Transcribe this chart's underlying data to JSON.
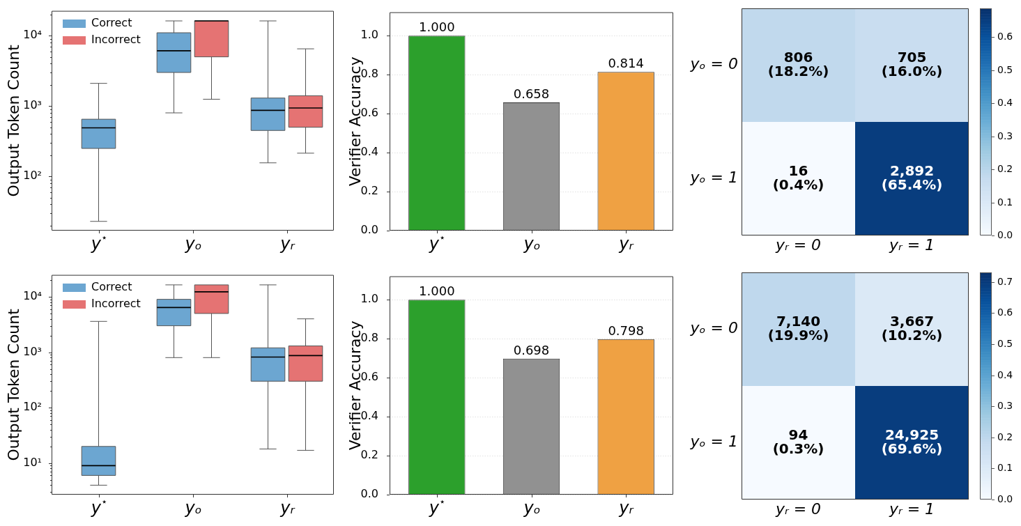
{
  "chart_data": [
    {
      "type": "box",
      "ylabel": "Output Token Count",
      "categories": [
        "y$^{⋆}$",
        "yₒ",
        "yᵣ"
      ],
      "log": "y",
      "ylim": [
        17,
        22500
      ],
      "yticks": [
        {
          "value": 20,
          "label": null
        },
        {
          "value": 30,
          "label": null
        },
        {
          "value": 40,
          "label": null
        },
        {
          "value": 50,
          "label": null
        },
        {
          "value": 60,
          "label": null
        },
        {
          "value": 70,
          "label": null
        },
        {
          "value": 80,
          "label": null
        },
        {
          "value": 90,
          "label": null
        },
        {
          "value": 100,
          "label": "10²"
        },
        {
          "value": 200,
          "label": null
        },
        {
          "value": 300,
          "label": null
        },
        {
          "value": 400,
          "label": null
        },
        {
          "value": 500,
          "label": null
        },
        {
          "value": 600,
          "label": null
        },
        {
          "value": 700,
          "label": null
        },
        {
          "value": 800,
          "label": null
        },
        {
          "value": 900,
          "label": null
        },
        {
          "value": 1000,
          "label": "10³"
        },
        {
          "value": 2000,
          "label": null
        },
        {
          "value": 3000,
          "label": null
        },
        {
          "value": 4000,
          "label": null
        },
        {
          "value": 5000,
          "label": null
        },
        {
          "value": 6000,
          "label": null
        },
        {
          "value": 7000,
          "label": null
        },
        {
          "value": 8000,
          "label": null
        },
        {
          "value": 9000,
          "label": null
        },
        {
          "value": 10000,
          "label": "10⁴"
        },
        {
          "value": 20000,
          "label": null
        }
      ],
      "legend": "top left",
      "series": [
        {
          "name": "Correct",
          "color": "#6ca6d1",
          "boxes": [
            {
              "low": 23,
              "q1": 250,
              "median": 490,
              "q3": 650,
              "high": 2100
            },
            {
              "low": 800,
              "q1": 3000,
              "median": 6100,
              "q3": 11000,
              "high": 16200
            },
            {
              "low": 156,
              "q1": 450,
              "median": 870,
              "q3": 1300,
              "high": 16200
            }
          ]
        },
        {
          "name": "Incorrect",
          "color": "#e57373",
          "boxes": [
            null,
            {
              "low": 1250,
              "q1": 5000,
              "median": 16200,
              "q3": 16200,
              "high": 16200
            },
            {
              "low": 214,
              "q1": 500,
              "median": 940,
              "q3": 1400,
              "high": 6500
            }
          ]
        }
      ]
    },
    {
      "type": "bar",
      "ylabel": "Verifier Accuracy",
      "categories": [
        "y$^{⋆}$",
        "yₒ",
        "yᵣ"
      ],
      "values": [
        1.0,
        0.658,
        0.814
      ],
      "colors": [
        "#2ca02c",
        "#919191",
        "#efa143"
      ],
      "value_labels": [
        "1.000",
        "0.658",
        "0.814"
      ],
      "ylim": [
        0,
        1.12
      ],
      "yticks": [
        {
          "value": 0,
          "label": "0.0"
        },
        0.2,
        0.4,
        0.6,
        0.8,
        {
          "value": 1,
          "label": "1.0"
        }
      ],
      "grid": "y"
    },
    {
      "type": "heatmap",
      "categories": [
        "yᵣ = 0",
        "yᵣ = 1"
      ],
      "y_categories": [
        "yₒ = 0",
        "yₒ = 1"
      ],
      "cells": [
        [
          0.182,
          0.16
        ],
        [
          0.004,
          0.654
        ]
      ],
      "cell_labels": [
        [
          "806\n(18.2%)",
          "705\n(16.0%)"
        ],
        [
          "16\n(0.4%)",
          "2,892\n(65.4%)"
        ]
      ],
      "clim": [
        0,
        0.687
      ],
      "cticks": [
        {
          "value": 0,
          "label": "0.0"
        },
        0.1,
        0.2,
        0.3,
        0.4,
        0.5,
        0.6
      ]
    },
    {
      "type": "box",
      "ylabel": "Output Token Count",
      "categories": [
        "y$^{⋆}$",
        "yₒ",
        "yᵣ"
      ],
      "log": "y",
      "ylim": [
        2.7,
        24800
      ],
      "yticks": [
        {
          "value": 3,
          "label": null
        },
        {
          "value": 4,
          "label": null
        },
        {
          "value": 5,
          "label": null
        },
        {
          "value": 6,
          "label": null
        },
        {
          "value": 7,
          "label": null
        },
        {
          "value": 8,
          "label": null
        },
        {
          "value": 9,
          "label": null
        },
        {
          "value": 10,
          "label": "10¹"
        },
        {
          "value": 20,
          "label": null
        },
        {
          "value": 30,
          "label": null
        },
        {
          "value": 40,
          "label": null
        },
        {
          "value": 50,
          "label": null
        },
        {
          "value": 60,
          "label": null
        },
        {
          "value": 70,
          "label": null
        },
        {
          "value": 80,
          "label": null
        },
        {
          "value": 90,
          "label": null
        },
        {
          "value": 100,
          "label": "10²"
        },
        {
          "value": 200,
          "label": null
        },
        {
          "value": 300,
          "label": null
        },
        {
          "value": 400,
          "label": null
        },
        {
          "value": 500,
          "label": null
        },
        {
          "value": 600,
          "label": null
        },
        {
          "value": 700,
          "label": null
        },
        {
          "value": 800,
          "label": null
        },
        {
          "value": 900,
          "label": null
        },
        {
          "value": 1000,
          "label": "10³"
        },
        {
          "value": 2000,
          "label": null
        },
        {
          "value": 3000,
          "label": null
        },
        {
          "value": 4000,
          "label": null
        },
        {
          "value": 5000,
          "label": null
        },
        {
          "value": 6000,
          "label": null
        },
        {
          "value": 7000,
          "label": null
        },
        {
          "value": 8000,
          "label": null
        },
        {
          "value": 9000,
          "label": null
        },
        {
          "value": 10000,
          "label": "10⁴"
        },
        {
          "value": 20000,
          "label": null
        }
      ],
      "legend": "top left",
      "series": [
        {
          "name": "Correct",
          "color": "#6ca6d1",
          "boxes": [
            {
              "low": 4,
              "q1": 6,
              "median": 9,
              "q3": 20,
              "high": 3600
            },
            {
              "low": 800,
              "q1": 3000,
              "median": 6400,
              "q3": 9000,
              "high": 16400
            },
            {
              "low": 18,
              "q1": 300,
              "median": 820,
              "q3": 1200,
              "high": 16400
            }
          ]
        },
        {
          "name": "Incorrect",
          "color": "#e57373",
          "boxes": [
            null,
            {
              "low": 800,
              "q1": 5000,
              "median": 12300,
              "q3": 16400,
              "high": 16400
            },
            {
              "low": 17,
              "q1": 300,
              "median": 870,
              "q3": 1300,
              "high": 4000
            }
          ]
        }
      ]
    },
    {
      "type": "bar",
      "ylabel": "Verifier Accuracy",
      "categories": [
        "y$^{⋆}$",
        "yₒ",
        "yᵣ"
      ],
      "values": [
        1.0,
        0.698,
        0.798
      ],
      "colors": [
        "#2ca02c",
        "#919191",
        "#efa143"
      ],
      "value_labels": [
        "1.000",
        "0.698",
        "0.798"
      ],
      "ylim": [
        0,
        1.12
      ],
      "yticks": [
        {
          "value": 0,
          "label": "0.0"
        },
        0.2,
        0.4,
        0.6,
        0.8,
        {
          "value": 1,
          "label": "1.0"
        }
      ],
      "grid": "y"
    },
    {
      "type": "heatmap",
      "categories": [
        "yᵣ = 0",
        "yᵣ = 1"
      ],
      "y_categories": [
        "yₒ = 0",
        "yₒ = 1"
      ],
      "cells": [
        [
          0.199,
          0.102
        ],
        [
          0.003,
          0.696
        ]
      ],
      "cell_labels": [
        [
          "7,140\n(19.9%)",
          "3,667\n(10.2%)"
        ],
        [
          "94\n(0.3%)",
          "24,925\n(69.6%)"
        ]
      ],
      "clim": [
        0,
        0.731
      ],
      "cticks": [
        {
          "value": 0,
          "label": "0.0"
        },
        0.1,
        0.2,
        0.3,
        0.4,
        0.5,
        0.6,
        0.7
      ]
    }
  ]
}
